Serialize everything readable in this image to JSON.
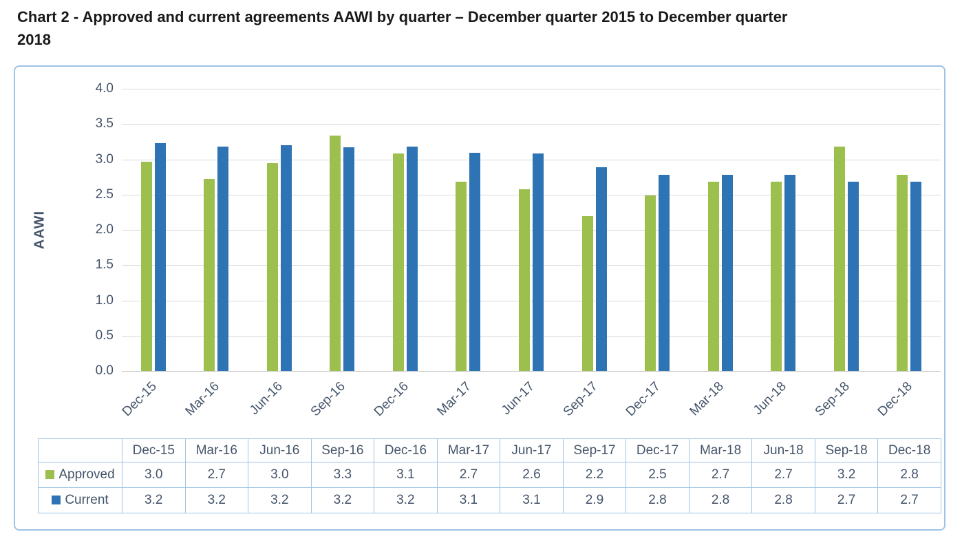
{
  "page": {
    "title_line1": "Chart 2 - Approved and current agreements AAWI by quarter – December quarter 2015 to December quarter",
    "title_line2": "2018"
  },
  "colors": {
    "approved_green": "#9CBF4E",
    "current_blue": "#2E74B5",
    "axis_text": "#44546A",
    "panel_border": "#9DC3E6",
    "gridline": "#D9D9D9",
    "baseline": "#C6C6C6",
    "table_border": "#9DC3E6",
    "title_text": "#1A1A1A"
  },
  "chart_data": {
    "type": "bar",
    "title": "Chart 2 - Approved and current agreements AAWI by quarter – December quarter 2015 to December quarter 2018",
    "xlabel": "",
    "ylabel": "AAWI",
    "ylim": [
      0,
      4.0
    ],
    "ytick_step": 0.5,
    "grid": true,
    "legend_position": "table-left",
    "categories": [
      "Dec-15",
      "Mar-16",
      "Jun-16",
      "Sep-16",
      "Dec-16",
      "Mar-17",
      "Jun-17",
      "Sep-17",
      "Dec-17",
      "Mar-18",
      "Jun-18",
      "Sep-18",
      "Dec-18"
    ],
    "series": [
      {
        "name": "Approved",
        "color": "#9CBF4E",
        "values": [
          3.0,
          2.7,
          3.0,
          3.3,
          3.1,
          2.7,
          2.6,
          2.2,
          2.5,
          2.7,
          2.7,
          3.2,
          2.8
        ],
        "plot_values": [
          2.97,
          2.72,
          2.95,
          3.34,
          3.08,
          2.68,
          2.58,
          2.2,
          2.49,
          2.68,
          2.68,
          3.18,
          2.78
        ]
      },
      {
        "name": "Current",
        "color": "#2E74B5",
        "values": [
          3.2,
          3.2,
          3.2,
          3.2,
          3.2,
          3.1,
          3.1,
          2.9,
          2.8,
          2.8,
          2.8,
          2.7,
          2.7
        ],
        "plot_values": [
          3.23,
          3.18,
          3.2,
          3.17,
          3.18,
          3.09,
          3.08,
          2.89,
          2.78,
          2.78,
          2.78,
          2.68,
          2.68
        ]
      }
    ]
  }
}
